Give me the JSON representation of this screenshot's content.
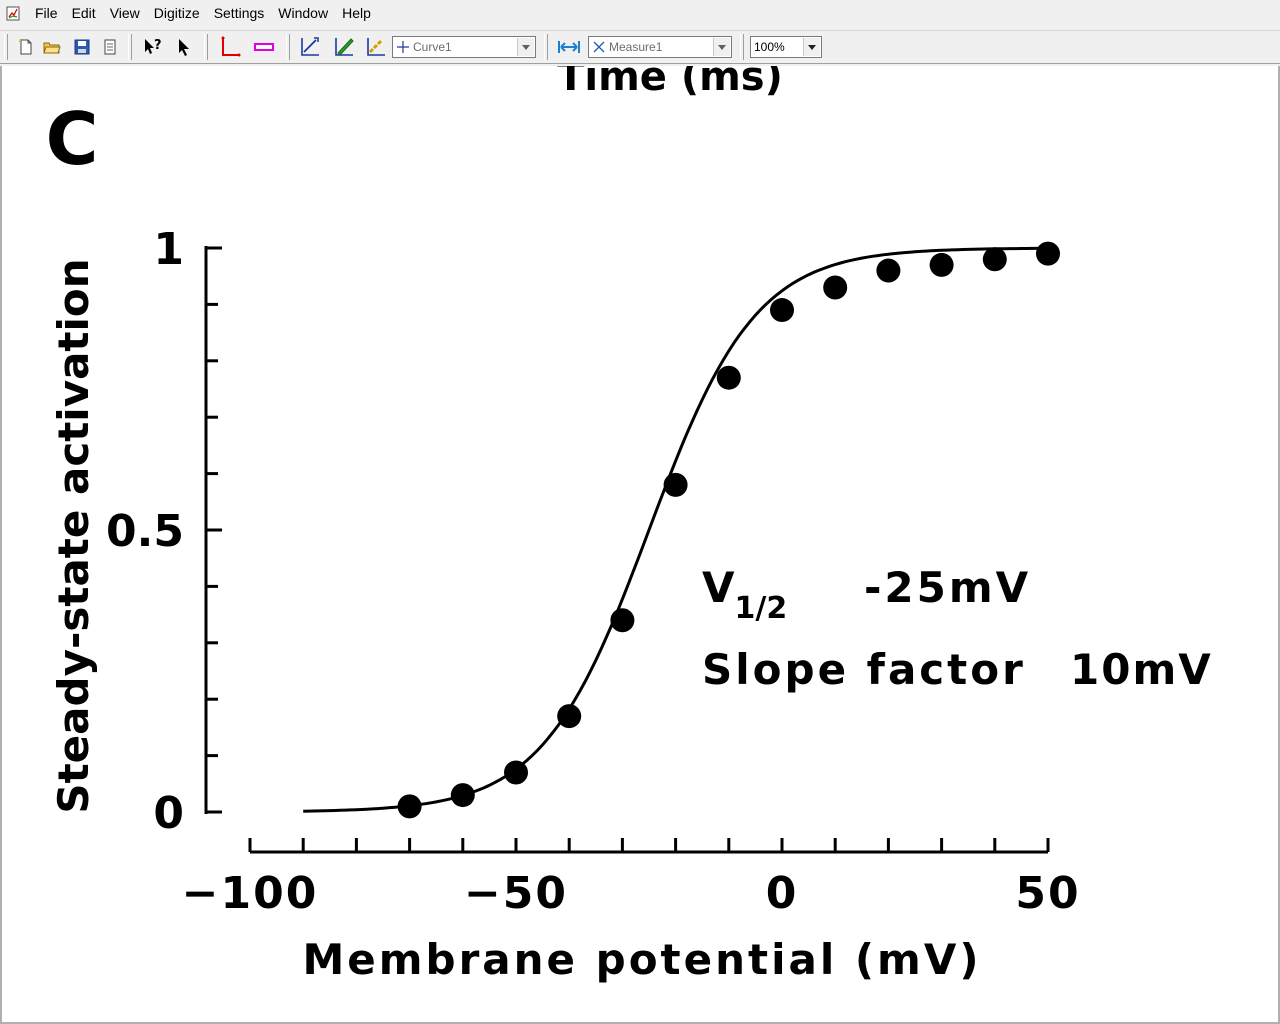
{
  "menu": {
    "items": [
      "File",
      "Edit",
      "View",
      "Digitize",
      "Settings",
      "Window",
      "Help"
    ]
  },
  "toolbar": {
    "curve_select": "Curve1",
    "measure_select": "Measure1",
    "zoom_select": "100%"
  },
  "icons": {
    "new": "new-document-icon",
    "open": "open-folder-icon",
    "save": "save-disk-icon",
    "properties": "document-properties-icon",
    "whats_this": "whats-this-icon",
    "select": "pointer-arrow-icon",
    "axes": "axes-point-icon",
    "scale": "scale-bar-icon",
    "curve_point": "curve-point-icon",
    "segment_fill": "segment-fill-icon",
    "point_match": "point-match-icon",
    "measure": "measure-icon"
  },
  "colors": {
    "axes_tool": "#e00000",
    "scale_tool": "#e000e0",
    "curve_tool": "#1a3aa0",
    "segment_tool": "#2a9a2a",
    "point_tool": "#d0a000",
    "measure_tool": "#1e7fd0"
  },
  "document": {
    "panel_letter": "C",
    "clipped_top_label": "Time (ms)",
    "annotation": {
      "v_half_label": "V",
      "v_half_subscript": "1/2",
      "v_half_value": "-25mV",
      "slope_label": "Slope factor",
      "slope_value": "10mV"
    }
  },
  "chart_data": {
    "type": "scatter",
    "title": "",
    "xlabel": "Membrane potential (mV)",
    "ylabel": "Steady-state activation",
    "xlim": [
      -100,
      50
    ],
    "ylim": [
      0,
      1
    ],
    "xticks": [
      -100,
      -50,
      0,
      50
    ],
    "yticks": [
      0,
      0.5,
      1
    ],
    "x_tick_labels": [
      "−100",
      "−50",
      "0",
      "50"
    ],
    "y_tick_labels": [
      "0",
      "0.5",
      "1"
    ],
    "grid": false,
    "series": [
      {
        "kind": "points",
        "x": [
          -70,
          -60,
          -50,
          -40,
          -30,
          -20,
          -10,
          0,
          10,
          20,
          30,
          40,
          50
        ],
        "y": [
          0.01,
          0.03,
          0.07,
          0.17,
          0.34,
          0.58,
          0.77,
          0.89,
          0.93,
          0.96,
          0.97,
          0.98,
          0.99
        ]
      },
      {
        "kind": "boltzmann-fit",
        "v_half": -25,
        "slope": 10,
        "x_range": [
          -90,
          50
        ]
      }
    ]
  }
}
